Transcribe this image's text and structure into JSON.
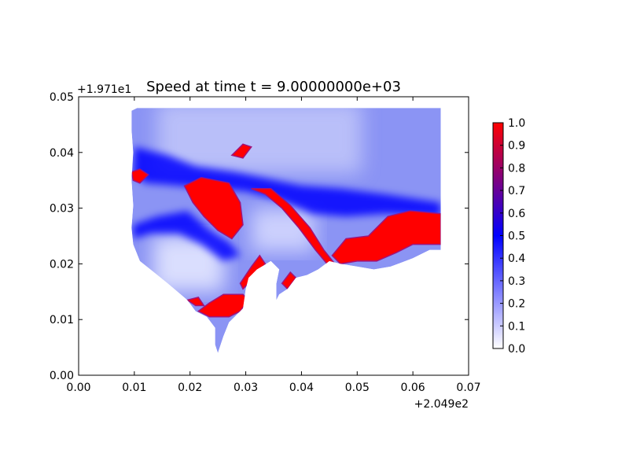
{
  "chart_data": {
    "type": "heatmap",
    "title": "Speed at time t = 9.00000000e+03",
    "x_offset_label": "+2.049e2",
    "y_offset_label": "+1.971e1",
    "xlim": [
      0.0,
      0.07
    ],
    "ylim": [
      0.0,
      0.05
    ],
    "x_ticks": [
      "0.00",
      "0.01",
      "0.02",
      "0.03",
      "0.04",
      "0.05",
      "0.06",
      "0.07"
    ],
    "y_ticks": [
      "0.00",
      "0.01",
      "0.02",
      "0.03",
      "0.04",
      "0.05"
    ],
    "colorbar": {
      "min": 0.0,
      "max": 1.0,
      "ticks": [
        "0.0",
        "0.1",
        "0.2",
        "0.3",
        "0.4",
        "0.5",
        "0.6",
        "0.7",
        "0.8",
        "0.9",
        "1.0"
      ],
      "colors": [
        "#ffffff",
        "#0000ff",
        "#ff0000"
      ]
    },
    "domain_outline": [
      [
        0.0095,
        0.0475
      ],
      [
        0.0105,
        0.048
      ],
      [
        0.065,
        0.048
      ],
      [
        0.065,
        0.0225
      ],
      [
        0.063,
        0.0225
      ],
      [
        0.06,
        0.021
      ],
      [
        0.056,
        0.0195
      ],
      [
        0.053,
        0.019
      ],
      [
        0.05,
        0.0195
      ],
      [
        0.047,
        0.02
      ],
      [
        0.045,
        0.0205
      ],
      [
        0.043,
        0.019
      ],
      [
        0.041,
        0.018
      ],
      [
        0.039,
        0.0175
      ],
      [
        0.0375,
        0.0155
      ],
      [
        0.036,
        0.0145
      ],
      [
        0.0355,
        0.0135
      ],
      [
        0.0355,
        0.0165
      ],
      [
        0.036,
        0.019
      ],
      [
        0.0345,
        0.0205
      ],
      [
        0.032,
        0.019
      ],
      [
        0.0305,
        0.0175
      ],
      [
        0.03,
        0.0155
      ],
      [
        0.0295,
        0.012
      ],
      [
        0.028,
        0.0105
      ],
      [
        0.027,
        0.0095
      ],
      [
        0.026,
        0.007
      ],
      [
        0.025,
        0.004
      ],
      [
        0.0245,
        0.0055
      ],
      [
        0.0245,
        0.0085
      ],
      [
        0.023,
        0.0105
      ],
      [
        0.021,
        0.0115
      ],
      [
        0.0195,
        0.0135
      ],
      [
        0.016,
        0.0165
      ],
      [
        0.0135,
        0.0185
      ],
      [
        0.011,
        0.0205
      ],
      [
        0.0098,
        0.0235
      ],
      [
        0.0095,
        0.0265
      ],
      [
        0.0098,
        0.0305
      ],
      [
        0.0095,
        0.035
      ],
      [
        0.0098,
        0.04
      ],
      [
        0.0095,
        0.044
      ]
    ],
    "high_speed_regions": [
      {
        "value": 1.0,
        "points": [
          [
            0.019,
            0.034
          ],
          [
            0.022,
            0.0355
          ],
          [
            0.027,
            0.0345
          ],
          [
            0.029,
            0.031
          ],
          [
            0.0295,
            0.027
          ],
          [
            0.0275,
            0.0245
          ],
          [
            0.025,
            0.026
          ],
          [
            0.0225,
            0.0285
          ],
          [
            0.0205,
            0.031
          ]
        ]
      },
      {
        "value": 1.0,
        "points": [
          [
            0.0455,
            0.0215
          ],
          [
            0.048,
            0.0245
          ],
          [
            0.052,
            0.025
          ],
          [
            0.0555,
            0.0285
          ],
          [
            0.0595,
            0.0295
          ],
          [
            0.065,
            0.029
          ],
          [
            0.065,
            0.0235
          ],
          [
            0.06,
            0.0235
          ],
          [
            0.057,
            0.022
          ],
          [
            0.0535,
            0.0205
          ],
          [
            0.05,
            0.0205
          ],
          [
            0.047,
            0.02
          ]
        ]
      },
      {
        "value": 1.0,
        "points": [
          [
            0.031,
            0.0335
          ],
          [
            0.0345,
            0.0335
          ],
          [
            0.038,
            0.0305
          ],
          [
            0.0415,
            0.0265
          ],
          [
            0.044,
            0.0225
          ],
          [
            0.046,
            0.02
          ],
          [
            0.045,
            0.0195
          ],
          [
            0.0425,
            0.0225
          ],
          [
            0.0395,
            0.0265
          ],
          [
            0.0365,
            0.03
          ],
          [
            0.0335,
            0.0325
          ]
        ]
      },
      {
        "value": 1.0,
        "points": [
          [
            0.0215,
            0.0115
          ],
          [
            0.0235,
            0.0105
          ],
          [
            0.027,
            0.0105
          ],
          [
            0.029,
            0.0115
          ],
          [
            0.0305,
            0.0135
          ],
          [
            0.0295,
            0.0145
          ],
          [
            0.026,
            0.0145
          ],
          [
            0.0235,
            0.013
          ]
        ]
      },
      {
        "value": 1.0,
        "points": [
          [
            0.029,
            0.0165
          ],
          [
            0.031,
            0.0195
          ],
          [
            0.0325,
            0.0215
          ],
          [
            0.0335,
            0.02
          ],
          [
            0.031,
            0.017
          ],
          [
            0.0295,
            0.0155
          ]
        ]
      },
      {
        "value": 1.0,
        "points": [
          [
            0.0195,
            0.0135
          ],
          [
            0.021,
            0.0125
          ],
          [
            0.0225,
            0.0125
          ],
          [
            0.0215,
            0.014
          ]
        ]
      },
      {
        "value": 1.0,
        "points": [
          [
            0.0095,
            0.0365
          ],
          [
            0.011,
            0.037
          ],
          [
            0.0125,
            0.036
          ],
          [
            0.011,
            0.0345
          ],
          [
            0.0098,
            0.035
          ]
        ]
      },
      {
        "value": 1.0,
        "points": [
          [
            0.0275,
            0.0395
          ],
          [
            0.0295,
            0.0415
          ],
          [
            0.031,
            0.041
          ],
          [
            0.0295,
            0.039
          ]
        ]
      },
      {
        "value": 1.0,
        "points": [
          [
            0.0365,
            0.0165
          ],
          [
            0.038,
            0.0185
          ],
          [
            0.039,
            0.0175
          ],
          [
            0.0375,
            0.0155
          ]
        ]
      }
    ],
    "medium_speed_regions": [
      {
        "value": 0.5,
        "points": [
          [
            0.01,
            0.041
          ],
          [
            0.016,
            0.0395
          ],
          [
            0.021,
            0.0375
          ],
          [
            0.028,
            0.0365
          ],
          [
            0.033,
            0.0355
          ],
          [
            0.04,
            0.034
          ],
          [
            0.047,
            0.0335
          ],
          [
            0.055,
            0.0325
          ],
          [
            0.065,
            0.031
          ],
          [
            0.065,
            0.0285
          ],
          [
            0.055,
            0.029
          ],
          [
            0.048,
            0.0285
          ],
          [
            0.042,
            0.029
          ],
          [
            0.036,
            0.0315
          ],
          [
            0.03,
            0.033
          ],
          [
            0.024,
            0.0335
          ],
          [
            0.018,
            0.034
          ],
          [
            0.012,
            0.0345
          ],
          [
            0.0098,
            0.036
          ]
        ]
      },
      {
        "value": 0.5,
        "points": [
          [
            0.0098,
            0.027
          ],
          [
            0.014,
            0.0285
          ],
          [
            0.0195,
            0.0295
          ],
          [
            0.023,
            0.0265
          ],
          [
            0.027,
            0.024
          ],
          [
            0.029,
            0.0215
          ],
          [
            0.026,
            0.0205
          ],
          [
            0.022,
            0.0235
          ],
          [
            0.018,
            0.0255
          ],
          [
            0.013,
            0.0255
          ],
          [
            0.0098,
            0.0245
          ]
        ]
      }
    ]
  }
}
